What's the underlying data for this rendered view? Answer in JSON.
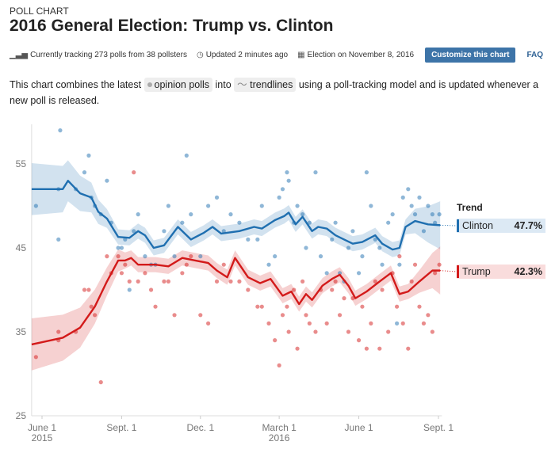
{
  "header": {
    "kicker": "POLL CHART",
    "title": "2016 General Election: Trump vs. Clinton"
  },
  "meta": {
    "tracking": "Currently tracking 273 polls from 38 pollsters",
    "updated": "Updated 2 minutes ago",
    "election": "Election on November 8, 2016",
    "customize_label": "Customize this chart",
    "faq_label": "FAQ"
  },
  "description": {
    "before": "This chart combines the latest",
    "chip1": "opinion polls",
    "mid": "into",
    "chip2": "trendlines",
    "after": "using a poll-tracking model and is updated whenever a new poll is released."
  },
  "legend": {
    "title": "Trend",
    "items": [
      {
        "name": "Clinton",
        "value": "47.7%",
        "color": "#1f6fb0"
      },
      {
        "name": "Trump",
        "value": "42.3%",
        "color": "#d31a1a"
      }
    ]
  },
  "chart_data": {
    "type": "line",
    "ylim": [
      25,
      60
    ],
    "yticks": [
      "55",
      "45",
      "35",
      "25"
    ],
    "xrange": [
      "2015-05-20",
      "2016-09-05"
    ],
    "xticks": [
      {
        "date": "2015-06-01",
        "label": "June 1",
        "sub": "2015"
      },
      {
        "date": "2015-09-01",
        "label": "Sept. 1",
        "sub": ""
      },
      {
        "date": "2015-12-01",
        "label": "Dec. 1",
        "sub": ""
      },
      {
        "date": "2016-03-01",
        "label": "March 1",
        "sub": "2016"
      },
      {
        "date": "2016-06-01",
        "label": "June 1",
        "sub": ""
      },
      {
        "date": "2016-09-01",
        "label": "Sept. 1",
        "sub": ""
      }
    ],
    "series": [
      {
        "name": "Clinton",
        "color": "#1f6fb0",
        "trend": [
          [
            "2015-05-20",
            52
          ],
          [
            "2015-06-25",
            52
          ],
          [
            "2015-07-01",
            53
          ],
          [
            "2015-07-15",
            51.5
          ],
          [
            "2015-07-28",
            51
          ],
          [
            "2015-08-05",
            49.3
          ],
          [
            "2015-08-15",
            48.5
          ],
          [
            "2015-08-28",
            46.3
          ],
          [
            "2015-09-10",
            46.2
          ],
          [
            "2015-09-20",
            47
          ],
          [
            "2015-09-28",
            46.5
          ],
          [
            "2015-10-08",
            45
          ],
          [
            "2015-10-20",
            45.3
          ],
          [
            "2015-11-05",
            47.5
          ],
          [
            "2015-11-20",
            46
          ],
          [
            "2015-12-05",
            46.8
          ],
          [
            "2015-12-15",
            47.5
          ],
          [
            "2015-12-25",
            46.7
          ],
          [
            "2016-01-15",
            47
          ],
          [
            "2016-02-01",
            47.5
          ],
          [
            "2016-02-10",
            47.3
          ],
          [
            "2016-02-25",
            48.3
          ],
          [
            "2016-03-07",
            48.8
          ],
          [
            "2016-03-12",
            49.2
          ],
          [
            "2016-03-20",
            47.8
          ],
          [
            "2016-03-28",
            48.7
          ],
          [
            "2016-04-08",
            47
          ],
          [
            "2016-04-15",
            47.5
          ],
          [
            "2016-04-25",
            47.3
          ],
          [
            "2016-05-05",
            46.5
          ],
          [
            "2016-05-15",
            46
          ],
          [
            "2016-05-25",
            45.5
          ],
          [
            "2016-06-05",
            45.7
          ],
          [
            "2016-06-20",
            46.5
          ],
          [
            "2016-06-28",
            45.5
          ],
          [
            "2016-07-10",
            44.8
          ],
          [
            "2016-07-18",
            45
          ],
          [
            "2016-07-25",
            47.5
          ],
          [
            "2016-08-05",
            48.2
          ],
          [
            "2016-08-20",
            47.8
          ],
          [
            "2016-09-03",
            47.7
          ]
        ]
      },
      {
        "name": "Trump",
        "color": "#d31a1a",
        "trend": [
          [
            "2015-05-20",
            33.5
          ],
          [
            "2015-06-25",
            34.3
          ],
          [
            "2015-07-15",
            35.5
          ],
          [
            "2015-08-01",
            38
          ],
          [
            "2015-08-15",
            41
          ],
          [
            "2015-08-28",
            43.5
          ],
          [
            "2015-09-05",
            43.5
          ],
          [
            "2015-09-12",
            43.8
          ],
          [
            "2015-09-20",
            43
          ],
          [
            "2015-10-10",
            43
          ],
          [
            "2015-10-25",
            42.8
          ],
          [
            "2015-11-10",
            43.8
          ],
          [
            "2015-11-25",
            43.5
          ],
          [
            "2015-12-10",
            43.2
          ],
          [
            "2015-12-20",
            42.3
          ],
          [
            "2016-01-01",
            41.5
          ],
          [
            "2016-01-10",
            43.8
          ],
          [
            "2016-01-25",
            41.5
          ],
          [
            "2016-02-08",
            40.8
          ],
          [
            "2016-02-20",
            41.3
          ],
          [
            "2016-03-05",
            39.3
          ],
          [
            "2016-03-15",
            39.8
          ],
          [
            "2016-03-24",
            38.3
          ],
          [
            "2016-04-01",
            39.5
          ],
          [
            "2016-04-08",
            38.8
          ],
          [
            "2016-04-20",
            40.5
          ],
          [
            "2016-05-01",
            41.3
          ],
          [
            "2016-05-10",
            41.8
          ],
          [
            "2016-05-20",
            40.5
          ],
          [
            "2016-05-28",
            39
          ],
          [
            "2016-06-10",
            39.8
          ],
          [
            "2016-06-25",
            41
          ],
          [
            "2016-07-08",
            42
          ],
          [
            "2016-07-18",
            39.5
          ],
          [
            "2016-07-28",
            39.8
          ],
          [
            "2016-08-10",
            41
          ],
          [
            "2016-08-25",
            42.3
          ],
          [
            "2016-09-03",
            42.3
          ]
        ]
      }
    ],
    "polls": [
      [
        "2015-05-25",
        50,
        32
      ],
      [
        "2015-06-20",
        46,
        35
      ],
      [
        "2015-06-20",
        52,
        34
      ],
      [
        "2015-06-22",
        59,
        null
      ],
      [
        "2015-07-10",
        52,
        35
      ],
      [
        "2015-07-20",
        54,
        40
      ],
      [
        "2015-07-25",
        56,
        40
      ],
      [
        "2015-07-28",
        51,
        38
      ],
      [
        "2015-08-01",
        50,
        37
      ],
      [
        "2015-08-08",
        49,
        29
      ],
      [
        "2015-08-15",
        53,
        44
      ],
      [
        "2015-08-20",
        48,
        42
      ],
      [
        "2015-08-28",
        45,
        44
      ],
      [
        "2015-09-01",
        45,
        42
      ],
      [
        "2015-09-05",
        46,
        43
      ],
      [
        "2015-09-10",
        40,
        41
      ],
      [
        "2015-09-15",
        47,
        54
      ],
      [
        "2015-09-20",
        49,
        41
      ],
      [
        "2015-09-28",
        44,
        42
      ],
      [
        "2015-10-05",
        43,
        40
      ],
      [
        "2015-10-10",
        43,
        38
      ],
      [
        "2015-10-20",
        47,
        41
      ],
      [
        "2015-10-25",
        50,
        41
      ],
      [
        "2015-11-01",
        44,
        37
      ],
      [
        "2015-11-10",
        48,
        42
      ],
      [
        "2015-11-15",
        56,
        43
      ],
      [
        "2015-11-20",
        49,
        44
      ],
      [
        "2015-12-01",
        44,
        37
      ],
      [
        "2015-12-10",
        50,
        36
      ],
      [
        "2015-12-20",
        51,
        41
      ],
      [
        "2015-12-28",
        47,
        43
      ],
      [
        "2016-01-05",
        49,
        41
      ],
      [
        "2016-01-15",
        48,
        41
      ],
      [
        "2016-01-25",
        46,
        40
      ],
      [
        "2016-02-05",
        46,
        38
      ],
      [
        "2016-02-10",
        50,
        38
      ],
      [
        "2016-02-18",
        43,
        36
      ],
      [
        "2016-02-25",
        44,
        34
      ],
      [
        "2016-03-01",
        51,
        31
      ],
      [
        "2016-03-05",
        52,
        37
      ],
      [
        "2016-03-10",
        54,
        38
      ],
      [
        "2016-03-12",
        53,
        35
      ],
      [
        "2016-03-18",
        48,
        40
      ],
      [
        "2016-03-22",
        50,
        33
      ],
      [
        "2016-03-28",
        49,
        41
      ],
      [
        "2016-04-01",
        45,
        37
      ],
      [
        "2016-04-05",
        48,
        36
      ],
      [
        "2016-04-12",
        54,
        35
      ],
      [
        "2016-04-18",
        44,
        40
      ],
      [
        "2016-04-25",
        42,
        36
      ],
      [
        "2016-05-01",
        46,
        40
      ],
      [
        "2016-05-05",
        48,
        41
      ],
      [
        "2016-05-10",
        42,
        37
      ],
      [
        "2016-05-15",
        41,
        39
      ],
      [
        "2016-05-20",
        45,
        35
      ],
      [
        "2016-05-25",
        47,
        39
      ],
      [
        "2016-06-01",
        42,
        34
      ],
      [
        "2016-06-05",
        44,
        38
      ],
      [
        "2016-06-10",
        54,
        33
      ],
      [
        "2016-06-15",
        50,
        36
      ],
      [
        "2016-06-20",
        46,
        41
      ],
      [
        "2016-06-25",
        45,
        33
      ],
      [
        "2016-06-28",
        43,
        40
      ],
      [
        "2016-07-05",
        48,
        35
      ],
      [
        "2016-07-10",
        49,
        42
      ],
      [
        "2016-07-15",
        36,
        38
      ],
      [
        "2016-07-18",
        43,
        44
      ],
      [
        "2016-07-22",
        51,
        36
      ],
      [
        "2016-07-28",
        52,
        33
      ],
      [
        "2016-08-01",
        50,
        41
      ],
      [
        "2016-08-05",
        49,
        43
      ],
      [
        "2016-08-10",
        51,
        38
      ],
      [
        "2016-08-15",
        47,
        36
      ],
      [
        "2016-08-20",
        50,
        37
      ],
      [
        "2016-08-25",
        49,
        35
      ],
      [
        "2016-08-28",
        48,
        42
      ],
      [
        "2016-09-02",
        49,
        43
      ]
    ]
  }
}
